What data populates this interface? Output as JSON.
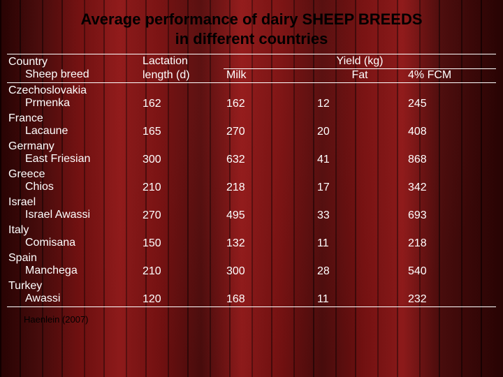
{
  "title_line1": "Average performance of dairy SHEEP BREEDS",
  "title_line2": "in different countries",
  "headers": {
    "col1a": "Country",
    "col1b": "Sheep breed",
    "col2a": "Lactation",
    "col2b": "length (d)",
    "yield": "Yield (kg)",
    "milk": "Milk",
    "fat": "Fat",
    "fcm": "4% FCM"
  },
  "rows": [
    {
      "country": "Czechoslovakia",
      "breed": "Prmenka",
      "lact": "162",
      "milk": "162",
      "fat": "12",
      "fcm": "245"
    },
    {
      "country": "France",
      "breed": "Lacaune",
      "lact": "165",
      "milk": "270",
      "fat": "20",
      "fcm": "408"
    },
    {
      "country": "Germany",
      "breed": "East Friesian",
      "lact": "300",
      "milk": "632",
      "fat": "41",
      "fcm": "868"
    },
    {
      "country": "Greece",
      "breed": "Chios",
      "lact": "210",
      "milk": "218",
      "fat": "17",
      "fcm": "342"
    },
    {
      "country": "Israel",
      "breed": "Israel Awassi",
      "lact": "270",
      "milk": "495",
      "fat": "33",
      "fcm": "693"
    },
    {
      "country": "Italy",
      "breed": "Comisana",
      "lact": "150",
      "milk": "132",
      "fat": "11",
      "fcm": "218"
    },
    {
      "country": "Spain",
      "breed": "Manchega",
      "lact": "210",
      "milk": "300",
      "fat": "28",
      "fcm": "540"
    },
    {
      "country": "Turkey",
      "breed": "Awassi",
      "lact": "120",
      "milk": "168",
      "fat": "11",
      "fcm": "232"
    }
  ],
  "citation": "Haenlein (2007)",
  "style": {
    "type": "table",
    "columns": [
      "Country / Sheep breed",
      "Lactation length (d)",
      "Milk",
      "Fat",
      "4% FCM"
    ],
    "text_color": "#ffffff",
    "title_color": "#000000",
    "citation_color": "#000000",
    "rule_color": "#ffffff",
    "background_base": "#5a0e0e",
    "title_fontsize_pt": 17,
    "body_fontsize_pt": 12,
    "font_family": "Arial"
  }
}
